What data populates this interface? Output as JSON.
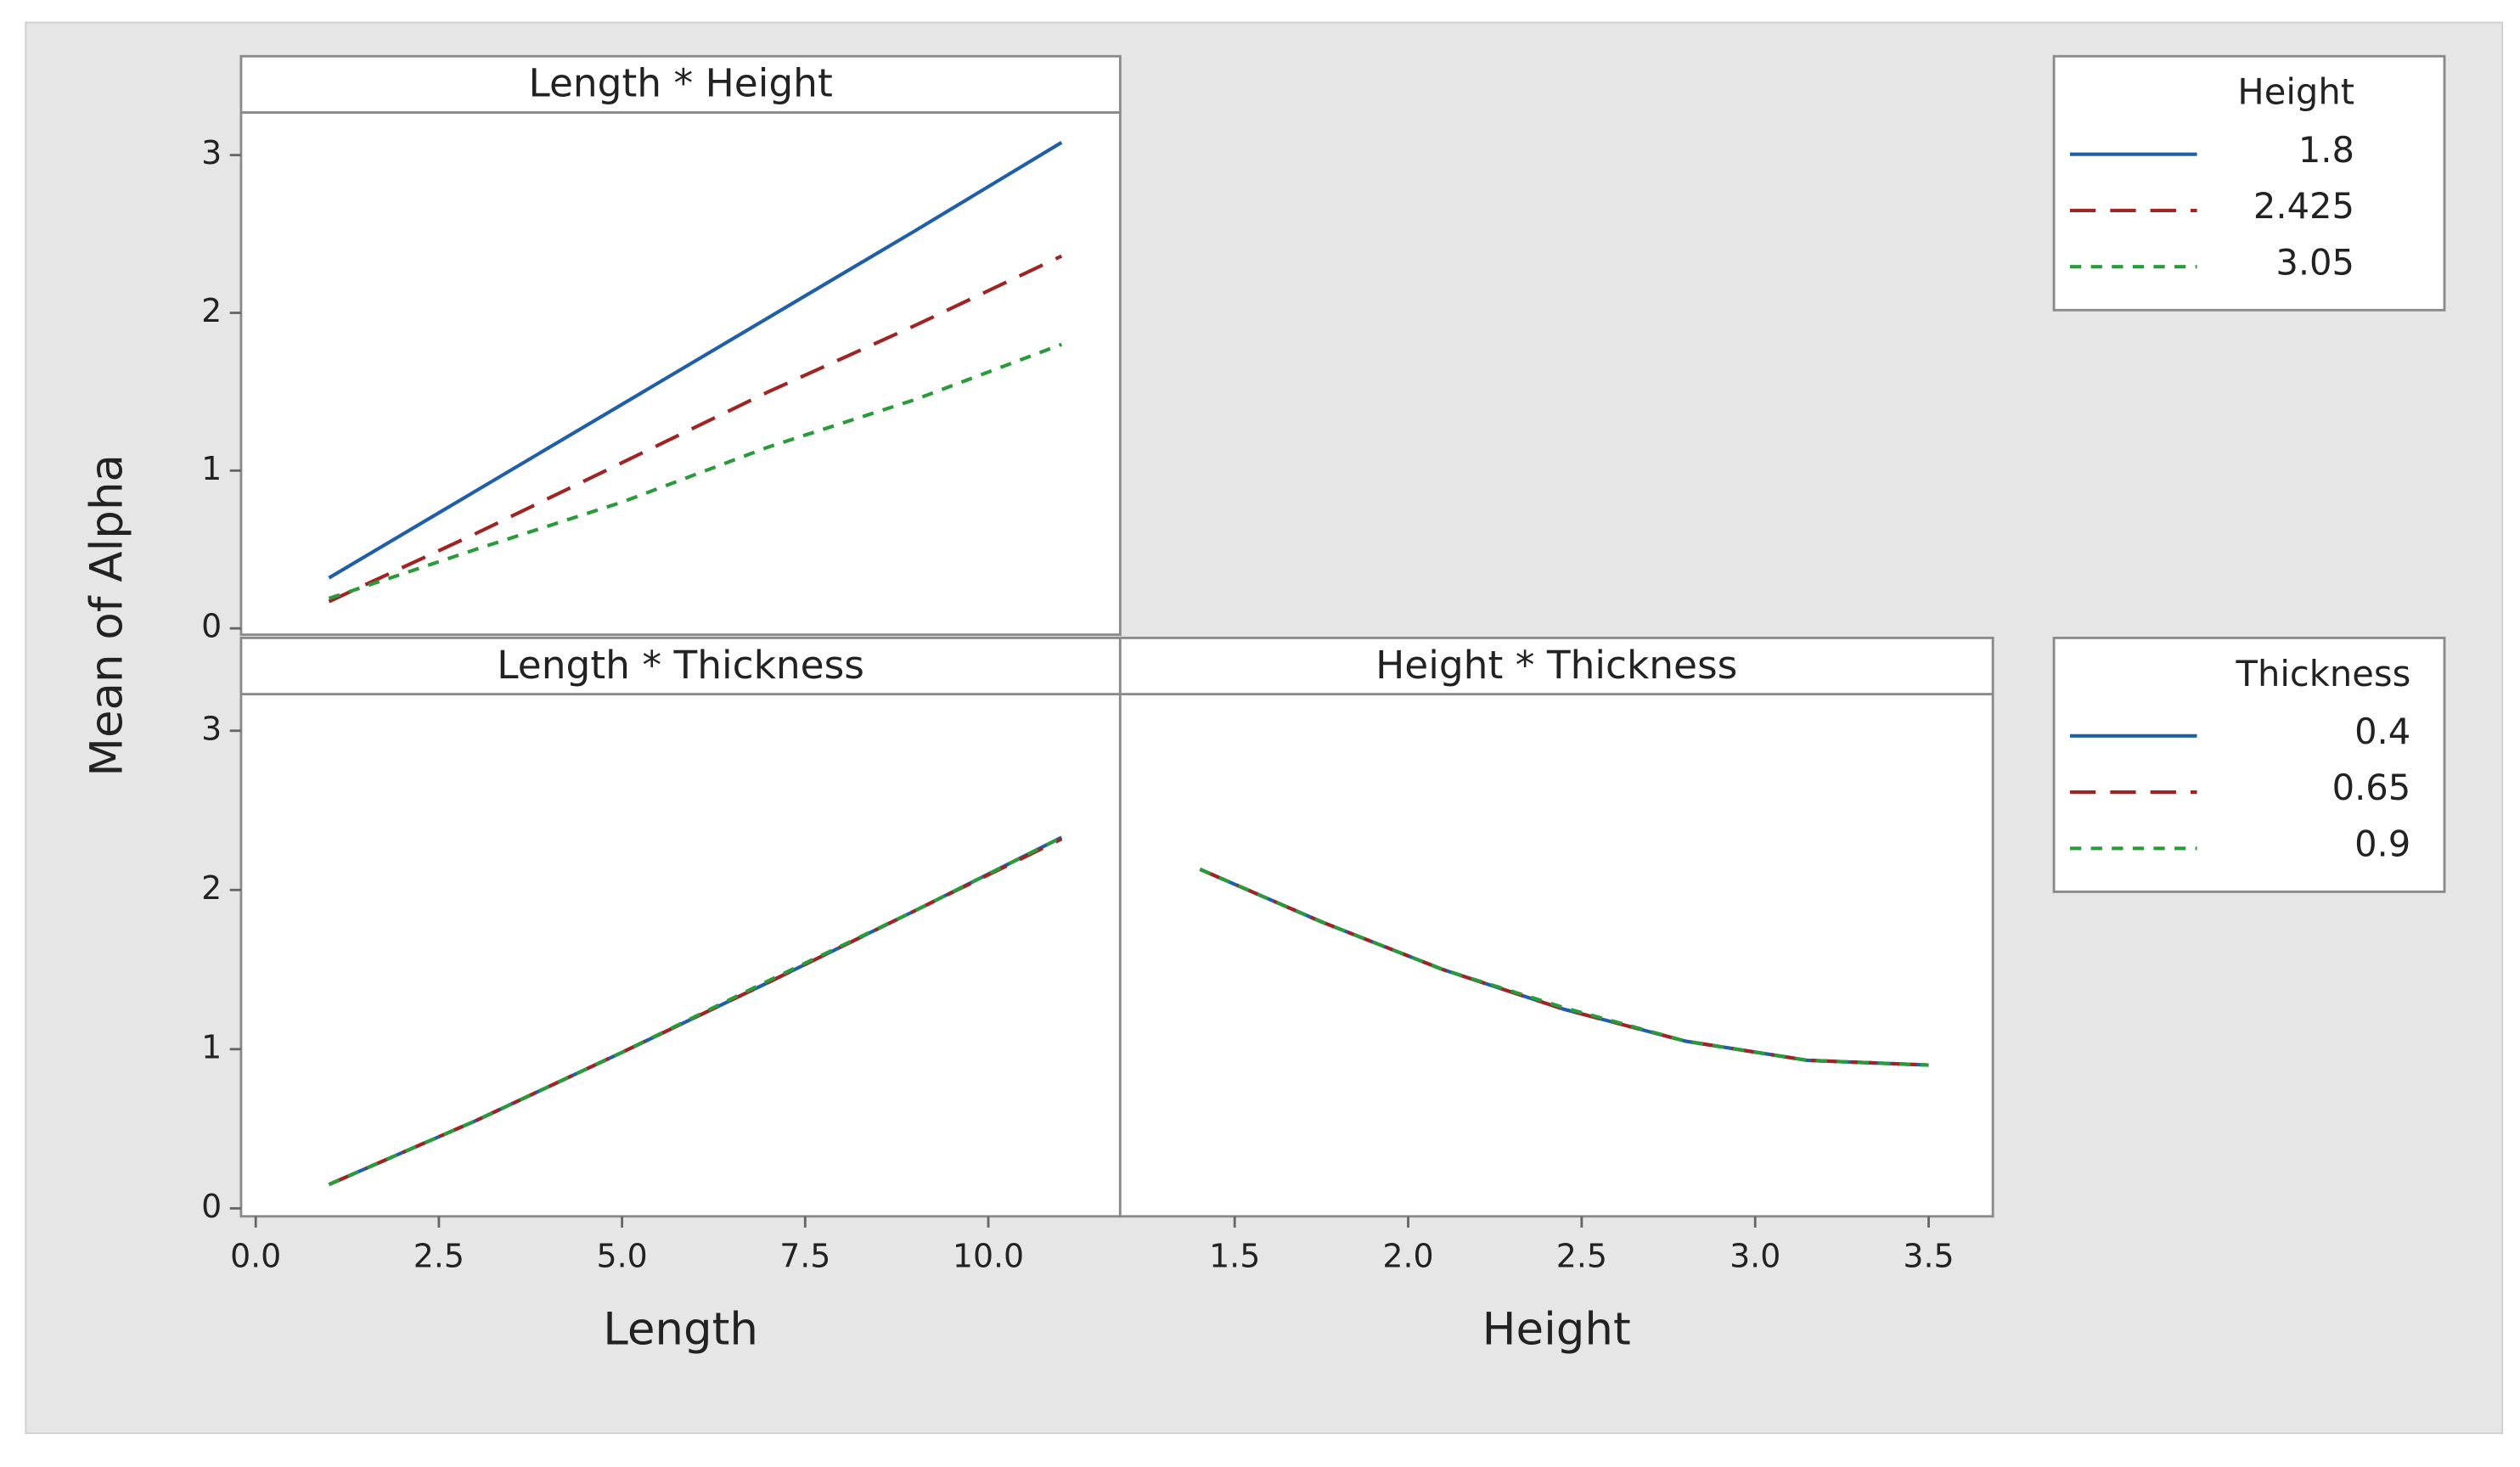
{
  "chart_data": [
    {
      "type": "line",
      "title": "Length * Height",
      "ylabel": "Mean of Alpha",
      "legend_title": "Height",
      "x": [
        1,
        3,
        5,
        7,
        9,
        11
      ],
      "xlim": [
        -0.2,
        11.8
      ],
      "ylim": [
        -0.04,
        3.27
      ],
      "yticks": [
        0,
        1,
        2,
        3
      ],
      "series": [
        {
          "name": "1.8",
          "color": "#1f5fa8",
          "dash": "solid",
          "values": [
            0.32,
            0.87,
            1.42,
            1.97,
            2.52,
            3.08
          ]
        },
        {
          "name": "2.425",
          "color": "#a02424",
          "dash": "dashed",
          "values": [
            0.17,
            0.6,
            1.05,
            1.5,
            1.92,
            2.36
          ]
        },
        {
          "name": "3.05",
          "color": "#2a9a3a",
          "dash": "dotted",
          "values": [
            0.19,
            0.5,
            0.8,
            1.15,
            1.45,
            1.8
          ]
        }
      ]
    },
    {
      "type": "line",
      "title": "Length * Thickness",
      "xlabel": "Length",
      "legend_title": "Thickness",
      "x": [
        1,
        3,
        5,
        7,
        9,
        11
      ],
      "xlim": [
        -0.2,
        11.8
      ],
      "ylim": [
        -0.05,
        3.23
      ],
      "yticks": [
        0,
        1,
        2,
        3
      ],
      "xticks": [
        {
          "value": 0,
          "label": "0.0"
        },
        2.5,
        {
          "value": 5,
          "label": "5.0"
        },
        7.5,
        {
          "value": 10,
          "label": "10.0"
        }
      ],
      "series": [
        {
          "name": "0.4",
          "color": "#1f5fa8",
          "dash": "solid",
          "values": [
            0.15,
            0.55,
            0.98,
            1.42,
            1.87,
            2.33
          ]
        },
        {
          "name": "0.65",
          "color": "#a02424",
          "dash": "dashed",
          "values": [
            0.15,
            0.55,
            0.98,
            1.42,
            1.87,
            2.32
          ]
        },
        {
          "name": "0.9",
          "color": "#2a9a3a",
          "dash": "dotted",
          "values": [
            0.15,
            0.55,
            0.98,
            1.43,
            1.87,
            2.33
          ]
        }
      ]
    },
    {
      "type": "line",
      "title": "Height * Thickness",
      "xlabel": "Height",
      "x": [
        1.4,
        1.75,
        2.1,
        2.45,
        2.8,
        3.15,
        3.5
      ],
      "xlim": [
        1.17,
        3.685
      ],
      "ylim": [
        -0.05,
        3.23
      ],
      "xticks": [
        1.5,
        {
          "value": 2,
          "label": "2.0"
        },
        2.5,
        {
          "value": 3,
          "label": "3.0"
        },
        3.5
      ],
      "series": [
        {
          "color": "#1f5fa8",
          "dash": "solid",
          "values": [
            2.13,
            1.8,
            1.5,
            1.25,
            1.05,
            0.93,
            0.9
          ]
        },
        {
          "color": "#a02424",
          "dash": "dashed",
          "values": [
            2.13,
            1.8,
            1.5,
            1.25,
            1.05,
            0.93,
            0.9
          ]
        },
        {
          "color": "#2a9a3a",
          "dash": "dotted",
          "values": [
            2.13,
            1.8,
            1.5,
            1.26,
            1.05,
            0.93,
            0.9
          ]
        }
      ]
    }
  ]
}
